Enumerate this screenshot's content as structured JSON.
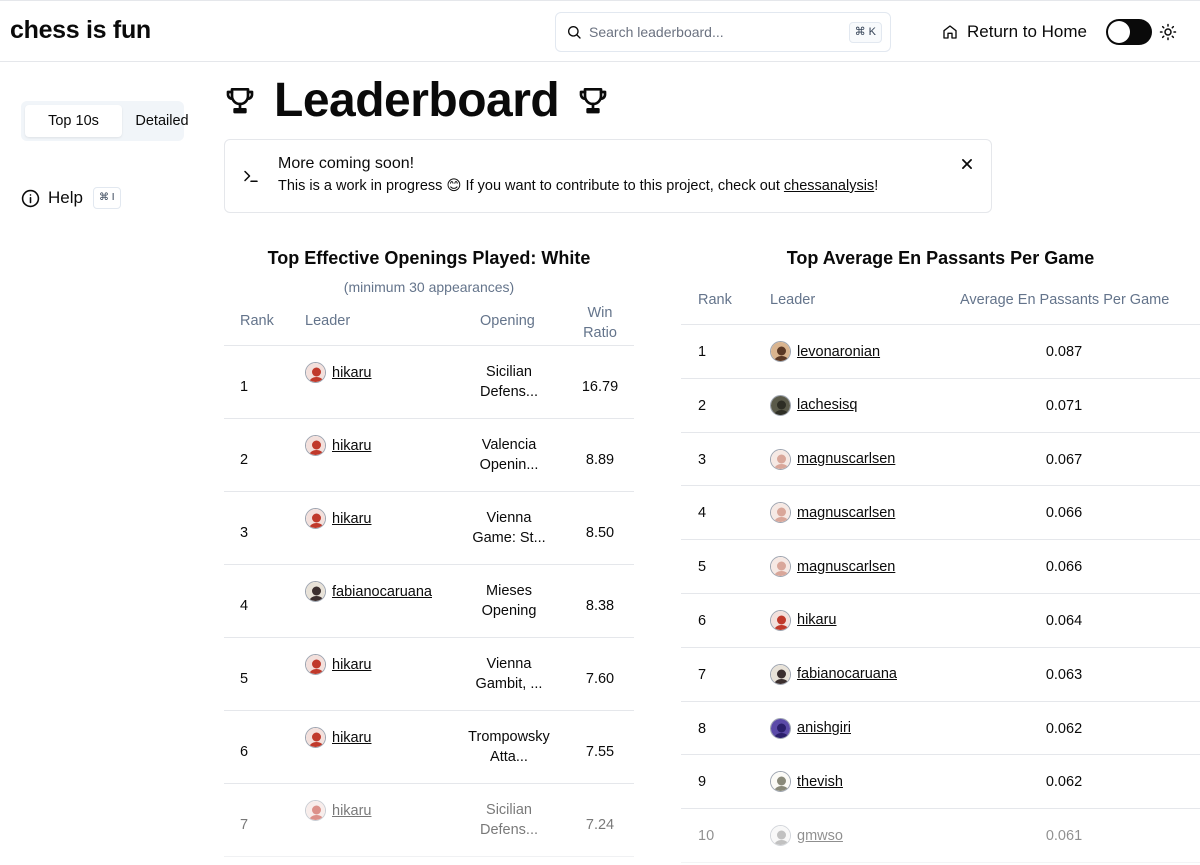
{
  "header": {
    "logo": "chess is fun",
    "search_placeholder": "Search leaderboard...",
    "search_shortcut": "⌘ K",
    "home_label": "Return to Home",
    "theme_toggle": "off"
  },
  "sidebar": {
    "tabs": [
      {
        "label": "Top 10s",
        "active": true
      },
      {
        "label": "Detailed",
        "active": false
      }
    ],
    "help_label": "Help",
    "help_shortcut": "⌘ I"
  },
  "page_title": "Leaderboard",
  "alert": {
    "title": "More coming soon!",
    "body_prefix": "This is a work in progress 😊 If you want to contribute to this project, check out ",
    "link_text": "chessanalysis",
    "body_suffix": "!"
  },
  "left_table": {
    "title": "Top Effective Openings Played: White",
    "caption": "(minimum 30 appearances)",
    "headers": {
      "rank": "Rank",
      "leader": "Leader",
      "opening": "Opening",
      "win_ratio_1": "Win",
      "win_ratio_2": "Ratio"
    },
    "rows": [
      {
        "rank": "1",
        "leader": "hikaru",
        "opening_1": "Sicilian",
        "opening_2": "Defens...",
        "win_ratio": "16.79"
      },
      {
        "rank": "2",
        "leader": "hikaru",
        "opening_1": "Valencia",
        "opening_2": "Openin...",
        "win_ratio": "8.89"
      },
      {
        "rank": "3",
        "leader": "hikaru",
        "opening_1": "Vienna",
        "opening_2": "Game: St...",
        "win_ratio": "8.50"
      },
      {
        "rank": "4",
        "leader": "fabianocaruana",
        "opening_1": "Mieses",
        "opening_2": "Opening",
        "win_ratio": "8.38"
      },
      {
        "rank": "5",
        "leader": "hikaru",
        "opening_1": "Vienna",
        "opening_2": "Gambit, ...",
        "win_ratio": "7.60"
      },
      {
        "rank": "6",
        "leader": "hikaru",
        "opening_1": "Trompowsky",
        "opening_2": "Atta...",
        "win_ratio": "7.55"
      },
      {
        "rank": "7",
        "leader": "hikaru",
        "opening_1": "Sicilian",
        "opening_2": "Defens...",
        "win_ratio": "7.24"
      }
    ]
  },
  "right_table": {
    "title": "Top Average En Passants Per Game",
    "headers": {
      "rank": "Rank",
      "leader": "Leader",
      "avg": "Average En Passants Per Game"
    },
    "rows": [
      {
        "rank": "1",
        "leader": "levonaronian",
        "avg": "0.087"
      },
      {
        "rank": "2",
        "leader": "lachesisq",
        "avg": "0.071"
      },
      {
        "rank": "3",
        "leader": "magnuscarlsen",
        "avg": "0.067"
      },
      {
        "rank": "4",
        "leader": "magnuscarlsen",
        "avg": "0.066"
      },
      {
        "rank": "5",
        "leader": "magnuscarlsen",
        "avg": "0.066"
      },
      {
        "rank": "6",
        "leader": "hikaru",
        "avg": "0.064"
      },
      {
        "rank": "7",
        "leader": "fabianocaruana",
        "avg": "0.063"
      },
      {
        "rank": "8",
        "leader": "anishgiri",
        "avg": "0.062"
      },
      {
        "rank": "9",
        "leader": "thevish",
        "avg": "0.062"
      },
      {
        "rank": "10",
        "leader": "gmwso",
        "avg": "0.061"
      }
    ]
  },
  "colors": {
    "text": "#0a0a0a",
    "muted": "#64748b",
    "border": "#e5e7eb",
    "segment_bg": "#f1f5f9"
  }
}
